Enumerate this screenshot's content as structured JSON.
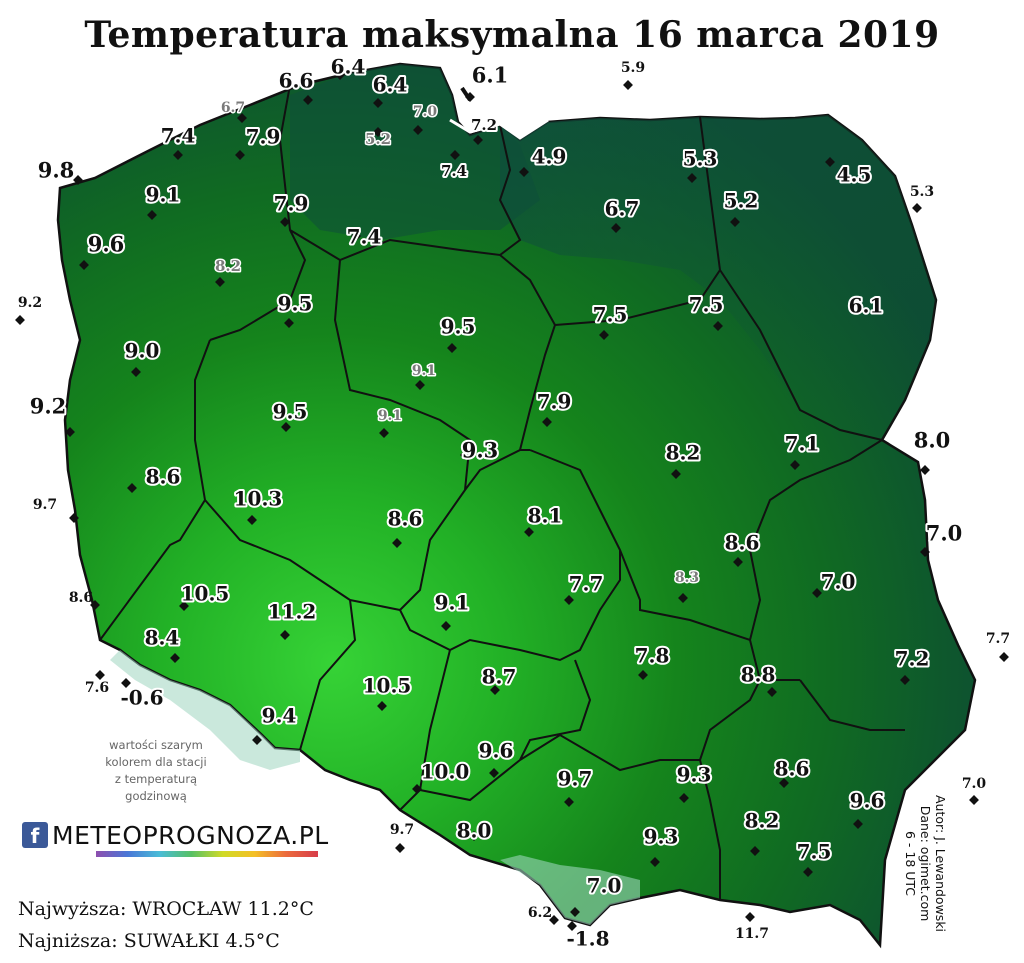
{
  "title": "Temperatura maksymalna 16 marca 2019",
  "note_lines": [
    "wartości szarym",
    "kolorem dla stacji",
    "z temperaturą",
    "godzinową"
  ],
  "logo": {
    "icon": "facebook-icon",
    "text": "METEOPROGNOZA.PL"
  },
  "extremes": {
    "max_label": "Najwyższa: WROCŁAW 11.2°C",
    "min_label": "Najniższa: SUWAŁKI 4.5°C"
  },
  "credits": [
    "Autor: J. Lewandowski",
    "Dane: ogimet.com",
    "6 - 18 UTC"
  ],
  "colors": {
    "land_warm": "#2ecb2e",
    "land_mid": "#17891c",
    "land_cool": "#0d5a33",
    "land_cold": "#0d3f3c",
    "mountains": "#8ec8b4",
    "border": "#111111",
    "label_regular": "#111111",
    "label_hourly": "#7a7a7a"
  },
  "stations_inside": [
    {
      "value": "6.6",
      "kind": "regular"
    },
    {
      "value": "6.4",
      "kind": "regular"
    },
    {
      "value": "6.4",
      "kind": "regular"
    },
    {
      "value": "6.7",
      "kind": "hourly"
    },
    {
      "value": "7.0",
      "kind": "hourly"
    },
    {
      "value": "5.2",
      "kind": "hourly"
    },
    {
      "value": "7.2",
      "kind": "regular"
    },
    {
      "value": "7.4",
      "kind": "regular"
    },
    {
      "value": "7.9",
      "kind": "regular"
    },
    {
      "value": "9.8",
      "kind": "regular"
    },
    {
      "value": "7.4",
      "kind": "regular"
    },
    {
      "value": "4.9",
      "kind": "regular"
    },
    {
      "value": "5.3",
      "kind": "regular"
    },
    {
      "value": "4.5",
      "kind": "regular"
    },
    {
      "value": "9.1",
      "kind": "regular"
    },
    {
      "value": "7.9",
      "kind": "regular"
    },
    {
      "value": "6.7",
      "kind": "regular"
    },
    {
      "value": "5.2",
      "kind": "regular"
    },
    {
      "value": "9.6",
      "kind": "regular"
    },
    {
      "value": "7.4",
      "kind": "regular"
    },
    {
      "value": "8.2",
      "kind": "hourly"
    },
    {
      "value": "9.5",
      "kind": "regular"
    },
    {
      "value": "9.5",
      "kind": "regular"
    },
    {
      "value": "7.5",
      "kind": "regular"
    },
    {
      "value": "7.5",
      "kind": "regular"
    },
    {
      "value": "6.1",
      "kind": "regular"
    },
    {
      "value": "9.0",
      "kind": "regular"
    },
    {
      "value": "9.1",
      "kind": "hourly"
    },
    {
      "value": "9.2",
      "kind": "regular"
    },
    {
      "value": "9.5",
      "kind": "regular"
    },
    {
      "value": "9.1",
      "kind": "hourly"
    },
    {
      "value": "7.9",
      "kind": "regular"
    },
    {
      "value": "9.3",
      "kind": "regular"
    },
    {
      "value": "8.2",
      "kind": "regular"
    },
    {
      "value": "7.1",
      "kind": "regular"
    },
    {
      "value": "8.6",
      "kind": "regular"
    },
    {
      "value": "10.3",
      "kind": "regular"
    },
    {
      "value": "8.6",
      "kind": "regular"
    },
    {
      "value": "8.1",
      "kind": "regular"
    },
    {
      "value": "8.6",
      "kind": "regular"
    },
    {
      "value": "7.7",
      "kind": "regular"
    },
    {
      "value": "8.3",
      "kind": "hourly"
    },
    {
      "value": "7.0",
      "kind": "regular"
    },
    {
      "value": "10.5",
      "kind": "regular"
    },
    {
      "value": "11.2",
      "kind": "regular"
    },
    {
      "value": "9.1",
      "kind": "regular"
    },
    {
      "value": "8.4",
      "kind": "regular"
    },
    {
      "value": "7.8",
      "kind": "regular"
    },
    {
      "value": "8.8",
      "kind": "regular"
    },
    {
      "value": "7.2",
      "kind": "regular"
    },
    {
      "value": "10.5",
      "kind": "regular"
    },
    {
      "value": "8.7",
      "kind": "regular"
    },
    {
      "value": "-0.6",
      "kind": "regular"
    },
    {
      "value": "9.4",
      "kind": "regular"
    },
    {
      "value": "9.6",
      "kind": "regular"
    },
    {
      "value": "10.0",
      "kind": "regular"
    },
    {
      "value": "9.7",
      "kind": "regular"
    },
    {
      "value": "9.3",
      "kind": "regular"
    },
    {
      "value": "8.6",
      "kind": "regular"
    },
    {
      "value": "9.6",
      "kind": "regular"
    },
    {
      "value": "8.0",
      "kind": "regular"
    },
    {
      "value": "9.3",
      "kind": "regular"
    },
    {
      "value": "8.2",
      "kind": "regular"
    },
    {
      "value": "7.5",
      "kind": "regular"
    },
    {
      "value": "7.0",
      "kind": "regular"
    },
    {
      "value": "-1.8",
      "kind": "regular"
    },
    {
      "value": "8.0",
      "kind": "regular"
    },
    {
      "value": "7.0",
      "kind": "regular"
    }
  ],
  "stations_outside": [
    {
      "value": "6.1"
    },
    {
      "value": "5.9"
    },
    {
      "value": "5.3"
    },
    {
      "value": "9.2"
    },
    {
      "value": "9.7"
    },
    {
      "value": "8.6"
    },
    {
      "value": "7.6"
    },
    {
      "value": "9.7"
    },
    {
      "value": "6.2"
    },
    {
      "value": "11.7"
    },
    {
      "value": "7.7"
    },
    {
      "value": "7.0"
    }
  ]
}
